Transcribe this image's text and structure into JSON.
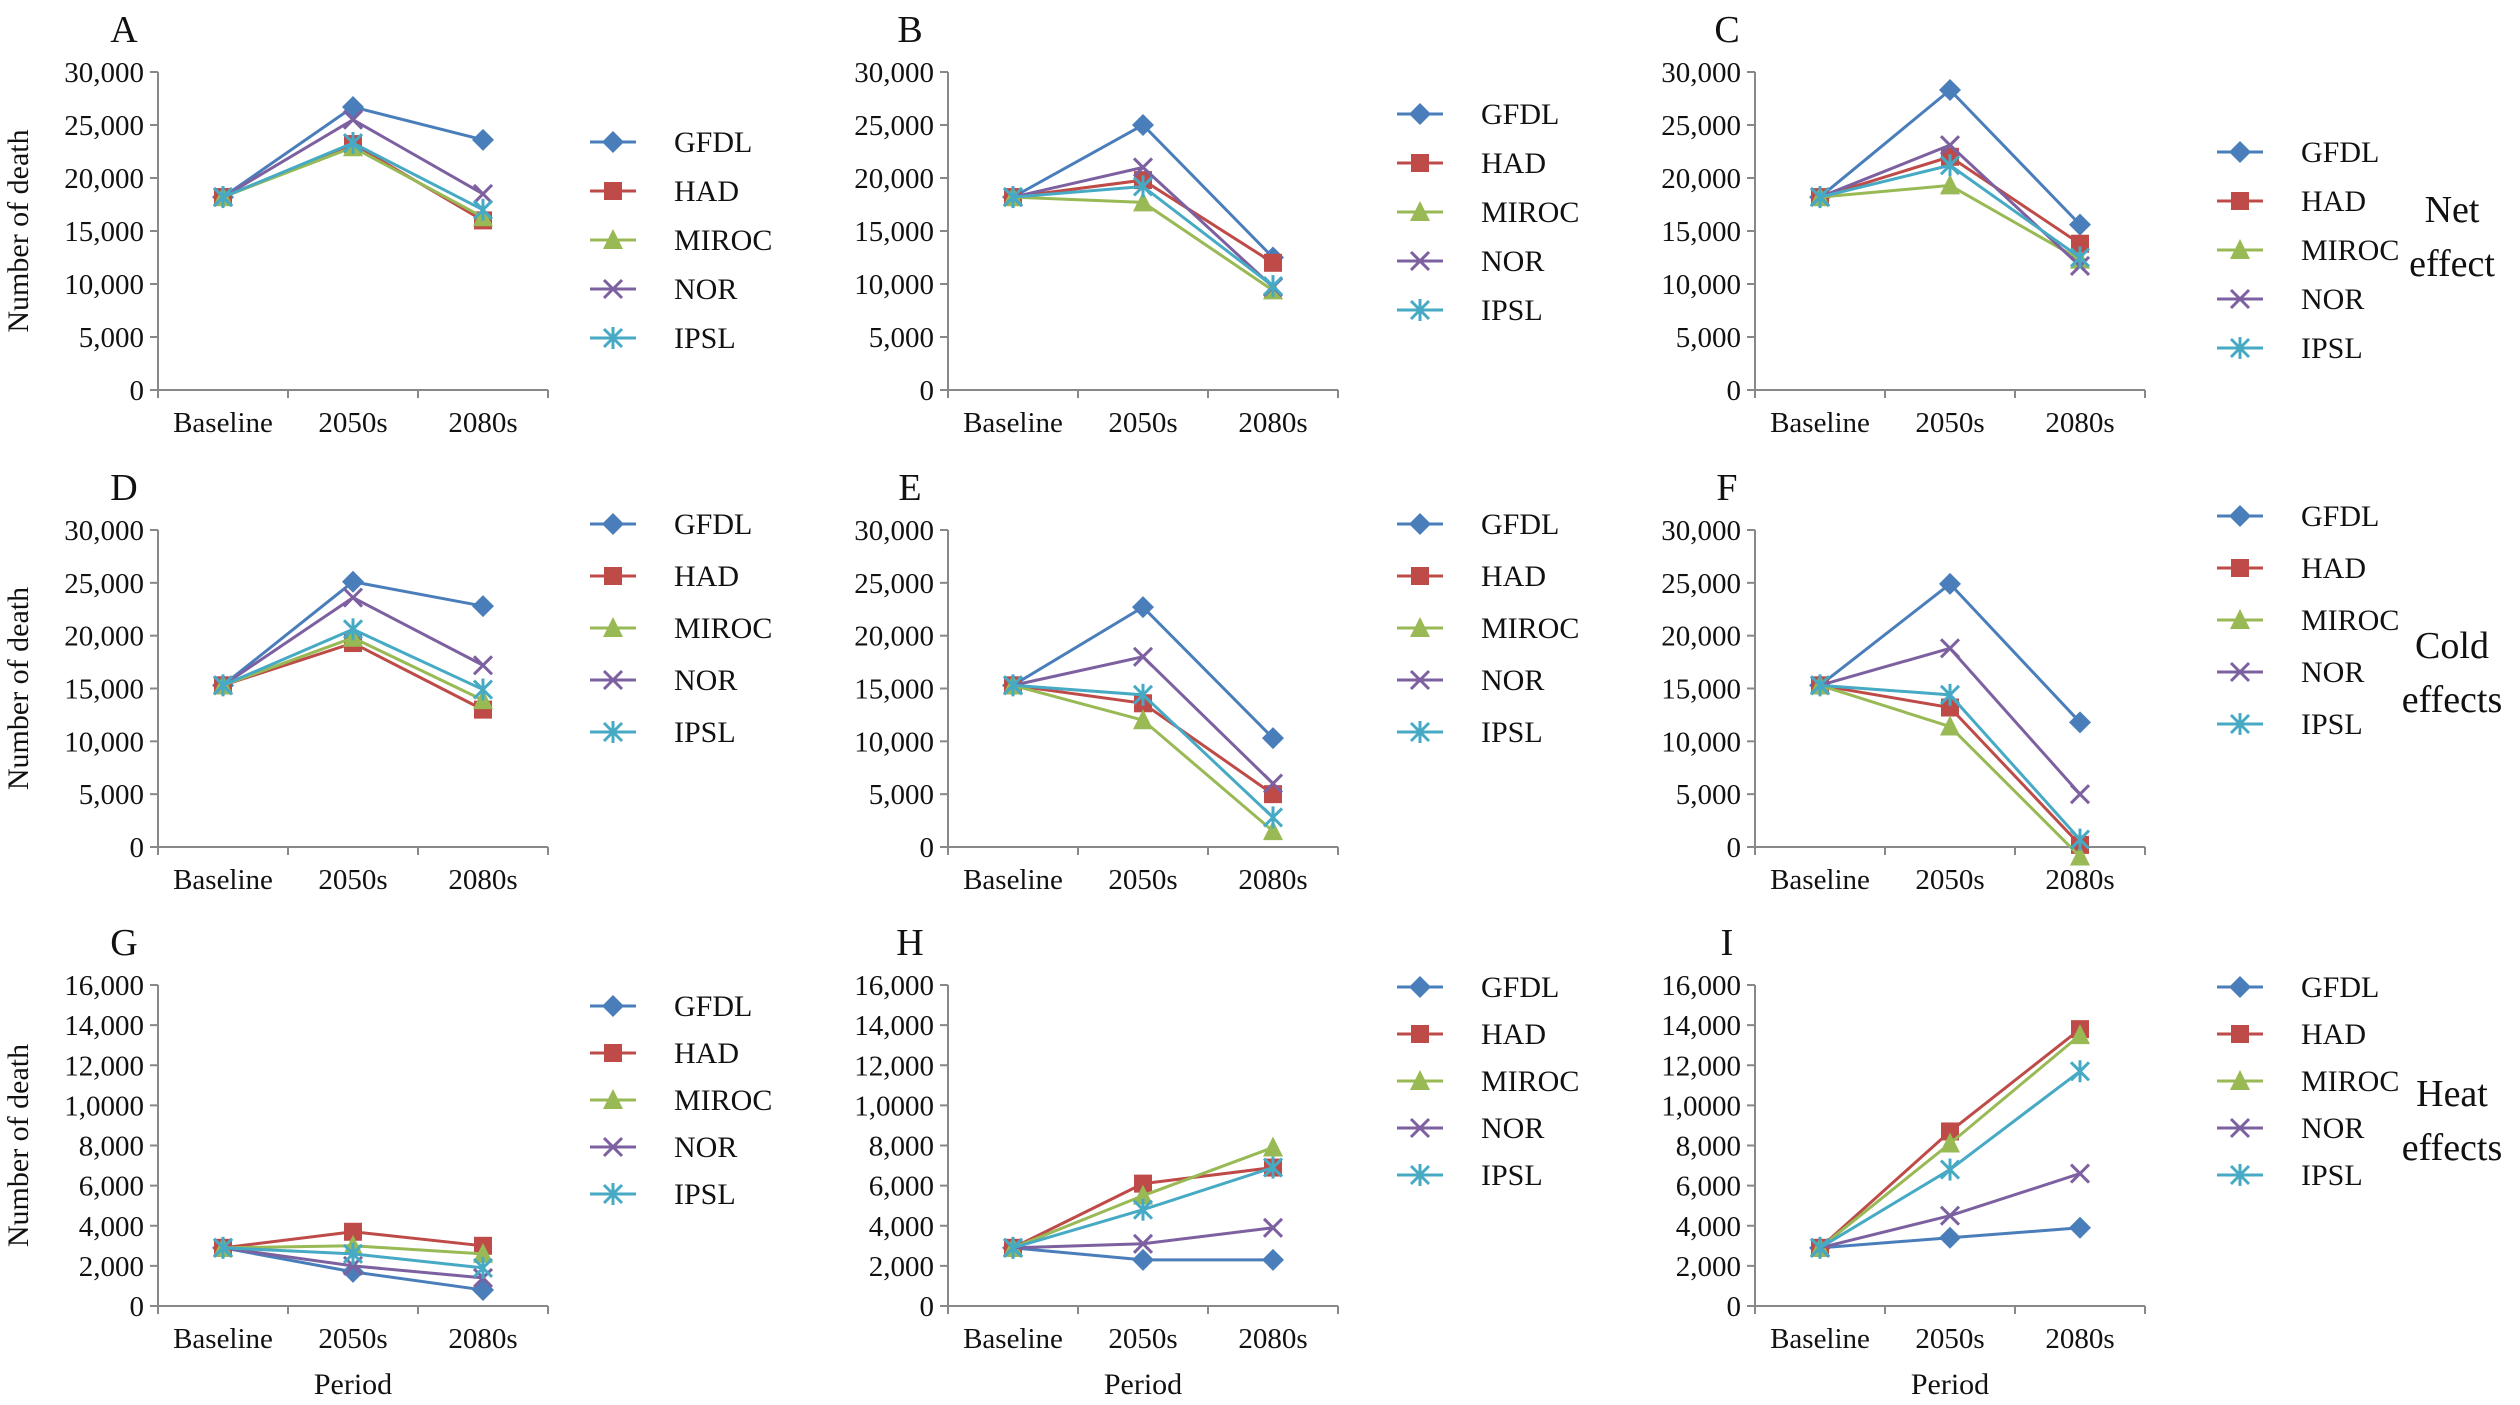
{
  "figure": {
    "ylabel": "Number of death",
    "xlabel": "Period",
    "categories": [
      "Baseline",
      "2050s",
      "2080s"
    ],
    "row_labels": [
      [
        "Net",
        "effect"
      ],
      [
        "Cold",
        "effects"
      ],
      [
        "Heat",
        "effects"
      ]
    ]
  },
  "series_styles": [
    {
      "name": "GFDL",
      "color": "#4a7ebb",
      "marker": "diamond"
    },
    {
      "name": "HAD",
      "color": "#be4b48",
      "marker": "square"
    },
    {
      "name": "MIROC",
      "color": "#98b954",
      "marker": "triangle"
    },
    {
      "name": "NOR",
      "color": "#7d60a0",
      "marker": "x"
    },
    {
      "name": "IPSL",
      "color": "#46aac5",
      "marker": "asterisk"
    }
  ],
  "chart_data": [
    {
      "panel": "A",
      "type": "line",
      "categories": [
        "Baseline",
        "2050s",
        "2080s"
      ],
      "ylabel": "Number of death",
      "xlabel": "",
      "ylim": [
        0,
        30000
      ],
      "yticks": [
        "0",
        "5,000",
        "10,000",
        "15,000",
        "20,000",
        "25,000",
        "30,000"
      ],
      "series": [
        {
          "name": "GFDL",
          "values": [
            18200,
            26700,
            23600
          ]
        },
        {
          "name": "HAD",
          "values": [
            18200,
            23200,
            16000
          ]
        },
        {
          "name": "MIROC",
          "values": [
            18200,
            22900,
            16300
          ]
        },
        {
          "name": "NOR",
          "values": [
            18200,
            25500,
            18500
          ]
        },
        {
          "name": "IPSL",
          "values": [
            18200,
            23300,
            17000
          ]
        }
      ]
    },
    {
      "panel": "B",
      "type": "line",
      "categories": [
        "Baseline",
        "2050s",
        "2080s"
      ],
      "ylabel": "",
      "xlabel": "",
      "ylim": [
        0,
        30000
      ],
      "yticks": [
        "0",
        "5,000",
        "10,000",
        "15,000",
        "20,000",
        "25,000",
        "30,000"
      ],
      "series": [
        {
          "name": "GFDL",
          "values": [
            18200,
            25000,
            12500
          ]
        },
        {
          "name": "HAD",
          "values": [
            18200,
            19800,
            12000
          ]
        },
        {
          "name": "MIROC",
          "values": [
            18200,
            17700,
            9400
          ]
        },
        {
          "name": "NOR",
          "values": [
            18200,
            21000,
            9700
          ]
        },
        {
          "name": "IPSL",
          "values": [
            18200,
            19200,
            9800
          ]
        }
      ]
    },
    {
      "panel": "C",
      "type": "line",
      "categories": [
        "Baseline",
        "2050s",
        "2080s"
      ],
      "ylabel": "",
      "xlabel": "",
      "ylim": [
        0,
        30000
      ],
      "yticks": [
        "0",
        "5,000",
        "10,000",
        "15,000",
        "20,000",
        "25,000",
        "30,000"
      ],
      "series": [
        {
          "name": "GFDL",
          "values": [
            18200,
            28300,
            15600
          ]
        },
        {
          "name": "HAD",
          "values": [
            18200,
            22000,
            13800
          ]
        },
        {
          "name": "MIROC",
          "values": [
            18200,
            19300,
            12300
          ]
        },
        {
          "name": "NOR",
          "values": [
            18200,
            23100,
            11700
          ]
        },
        {
          "name": "IPSL",
          "values": [
            18200,
            21200,
            12500
          ]
        }
      ]
    },
    {
      "panel": "D",
      "type": "line",
      "categories": [
        "Baseline",
        "2050s",
        "2080s"
      ],
      "ylabel": "Number of death",
      "xlabel": "",
      "ylim": [
        0,
        30000
      ],
      "yticks": [
        "0",
        "5,000",
        "10,000",
        "15,000",
        "20,000",
        "25,000",
        "30,000"
      ],
      "series": [
        {
          "name": "GFDL",
          "values": [
            15300,
            25100,
            22800
          ]
        },
        {
          "name": "HAD",
          "values": [
            15300,
            19300,
            13000
          ]
        },
        {
          "name": "MIROC",
          "values": [
            15300,
            19800,
            13900
          ]
        },
        {
          "name": "NOR",
          "values": [
            15300,
            23600,
            17200
          ]
        },
        {
          "name": "IPSL",
          "values": [
            15300,
            20600,
            14900
          ]
        }
      ]
    },
    {
      "panel": "E",
      "type": "line",
      "categories": [
        "Baseline",
        "2050s",
        "2080s"
      ],
      "ylabel": "",
      "xlabel": "",
      "ylim": [
        0,
        30000
      ],
      "yticks": [
        "0",
        "5,000",
        "10,000",
        "15,000",
        "20,000",
        "25,000",
        "30,000"
      ],
      "series": [
        {
          "name": "GFDL",
          "values": [
            15300,
            22700,
            10300
          ]
        },
        {
          "name": "HAD",
          "values": [
            15300,
            13600,
            5000
          ]
        },
        {
          "name": "MIROC",
          "values": [
            15300,
            12000,
            1500
          ]
        },
        {
          "name": "NOR",
          "values": [
            15300,
            18000,
            6000
          ]
        },
        {
          "name": "IPSL",
          "values": [
            15300,
            14400,
            2800
          ]
        }
      ]
    },
    {
      "panel": "F",
      "type": "line",
      "categories": [
        "Baseline",
        "2050s",
        "2080s"
      ],
      "ylabel": "",
      "xlabel": "",
      "ylim": [
        0,
        30000
      ],
      "yticks": [
        "0",
        "5,000",
        "10,000",
        "15,000",
        "20,000",
        "25,000",
        "30,000"
      ],
      "series": [
        {
          "name": "GFDL",
          "values": [
            15300,
            24900,
            11800
          ]
        },
        {
          "name": "HAD",
          "values": [
            15300,
            13200,
            200
          ]
        },
        {
          "name": "MIROC",
          "values": [
            15300,
            11400,
            -900
          ]
        },
        {
          "name": "NOR",
          "values": [
            15300,
            18800,
            5000
          ]
        },
        {
          "name": "IPSL",
          "values": [
            15300,
            14400,
            700
          ]
        }
      ]
    },
    {
      "panel": "G",
      "type": "line",
      "categories": [
        "Baseline",
        "2050s",
        "2080s"
      ],
      "ylabel": "Number of death",
      "xlabel": "Period",
      "ylim": [
        0,
        16000
      ],
      "yticks": [
        "0",
        "2,000",
        "4,000",
        "6,000",
        "8,000",
        "1,0000",
        "12,000",
        "14,000",
        "16,000"
      ],
      "series": [
        {
          "name": "GFDL",
          "values": [
            2900,
            1700,
            800
          ]
        },
        {
          "name": "HAD",
          "values": [
            2900,
            3700,
            3000
          ]
        },
        {
          "name": "MIROC",
          "values": [
            2900,
            3000,
            2600
          ]
        },
        {
          "name": "NOR",
          "values": [
            2900,
            2000,
            1400
          ]
        },
        {
          "name": "IPSL",
          "values": [
            2900,
            2600,
            1900
          ]
        }
      ]
    },
    {
      "panel": "H",
      "type": "line",
      "categories": [
        "Baseline",
        "2050s",
        "2080s"
      ],
      "ylabel": "",
      "xlabel": "Period",
      "ylim": [
        0,
        16000
      ],
      "yticks": [
        "0",
        "2,000",
        "4,000",
        "6,000",
        "8,000",
        "1,0000",
        "12,000",
        "14,000",
        "16,000"
      ],
      "series": [
        {
          "name": "GFDL",
          "values": [
            2900,
            2300,
            2300
          ]
        },
        {
          "name": "HAD",
          "values": [
            2900,
            6100,
            6900
          ]
        },
        {
          "name": "MIROC",
          "values": [
            2900,
            5500,
            7900
          ]
        },
        {
          "name": "NOR",
          "values": [
            2900,
            3100,
            3900
          ]
        },
        {
          "name": "IPSL",
          "values": [
            2900,
            4800,
            6900
          ]
        }
      ]
    },
    {
      "panel": "I",
      "type": "line",
      "categories": [
        "Baseline",
        "2050s",
        "2080s"
      ],
      "ylabel": "",
      "xlabel": "Period",
      "ylim": [
        0,
        16000
      ],
      "yticks": [
        "0",
        "2,000",
        "4,000",
        "6,000",
        "8,000",
        "1,0000",
        "12,000",
        "14,000",
        "16,000"
      ],
      "series": [
        {
          "name": "GFDL",
          "values": [
            2900,
            3400,
            3900
          ]
        },
        {
          "name": "HAD",
          "values": [
            2900,
            8700,
            13800
          ]
        },
        {
          "name": "MIROC",
          "values": [
            2900,
            8100,
            13500
          ]
        },
        {
          "name": "NOR",
          "values": [
            2900,
            4500,
            6600
          ]
        },
        {
          "name": "IPSL",
          "values": [
            2900,
            6800,
            11700
          ]
        }
      ]
    }
  ]
}
